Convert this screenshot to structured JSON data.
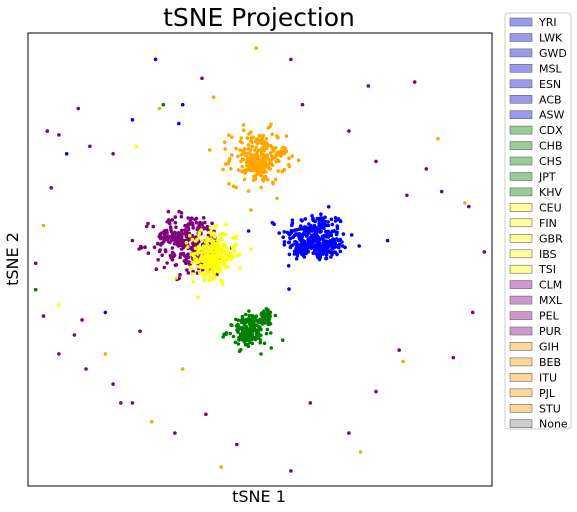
{
  "chart_data": {
    "type": "scatter",
    "title": "tSNE Projection",
    "xlabel": "tSNE 1",
    "ylabel": "tSNE 2",
    "xlim": [
      -60,
      60
    ],
    "ylim": [
      -60,
      60
    ],
    "grid": false,
    "ticks_visible": false,
    "legend_placement": "outside-right",
    "legend": [
      {
        "label": "YRI",
        "color": "#9999ee"
      },
      {
        "label": "LWK",
        "color": "#9999ee"
      },
      {
        "label": "GWD",
        "color": "#9999ee"
      },
      {
        "label": "MSL",
        "color": "#9999ee"
      },
      {
        "label": "ESN",
        "color": "#9999ee"
      },
      {
        "label": "ACB",
        "color": "#9999ee"
      },
      {
        "label": "ASW",
        "color": "#9999ee"
      },
      {
        "label": "CDX",
        "color": "#99cc99"
      },
      {
        "label": "CHB",
        "color": "#99cc99"
      },
      {
        "label": "CHS",
        "color": "#99cc99"
      },
      {
        "label": "JPT",
        "color": "#99cc99"
      },
      {
        "label": "KHV",
        "color": "#99cc99"
      },
      {
        "label": "CEU",
        "color": "#ffff99"
      },
      {
        "label": "FIN",
        "color": "#ffff99"
      },
      {
        "label": "GBR",
        "color": "#ffff99"
      },
      {
        "label": "IBS",
        "color": "#ffff99"
      },
      {
        "label": "TSI",
        "color": "#ffff99"
      },
      {
        "label": "CLM",
        "color": "#cc99cc"
      },
      {
        "label": "MXL",
        "color": "#cc99cc"
      },
      {
        "label": "PEL",
        "color": "#cc99cc"
      },
      {
        "label": "PUR",
        "color": "#cc99cc"
      },
      {
        "label": "GIH",
        "color": "#ffd699"
      },
      {
        "label": "BEB",
        "color": "#ffd699"
      },
      {
        "label": "ITU",
        "color": "#ffd699"
      },
      {
        "label": "PJL",
        "color": "#ffd699"
      },
      {
        "label": "STU",
        "color": "#ffd699"
      },
      {
        "label": "None",
        "color": "#cccccc"
      }
    ],
    "series": [
      {
        "color": "#0000ff",
        "clusters": [
          {
            "center": [
              14,
              6
            ],
            "spread": [
              7,
              5.5
            ],
            "n": 230
          },
          {
            "center": [
              17,
              3.5
            ],
            "spread": [
              3.5,
              2.5
            ],
            "n": 90
          },
          {
            "center": [
              10.5,
              2.5
            ],
            "spread": [
              1.2,
              1.2
            ],
            "n": 35
          },
          {
            "center": [
              12,
              7
            ],
            "spread": [
              1.3,
              1.3
            ],
            "n": 25
          }
        ],
        "outliers": [
          [
            -27,
            53
          ],
          [
            -33,
            37
          ],
          [
            -20,
            41
          ],
          [
            -50,
            28
          ],
          [
            -23,
            5
          ],
          [
            33,
            5
          ],
          [
            -40,
            -14
          ],
          [
            -21,
            36
          ]
        ]
      },
      {
        "color": "#008000",
        "clusters": [
          {
            "center": [
              -2.5,
              -19
            ],
            "spread": [
              5,
              3.5
            ],
            "n": 120
          },
          {
            "center": [
              -3,
              -20
            ],
            "spread": [
              1.8,
              1.8
            ],
            "n": 60
          },
          {
            "center": [
              1.5,
              -14.5
            ],
            "spread": [
              1.2,
              1.2
            ],
            "n": 35
          },
          {
            "center": [
              -2,
              -16
            ],
            "spread": [
              1.2,
              1.2
            ],
            "n": 20
          }
        ],
        "outliers": [
          [
            -25,
            41
          ],
          [
            -58,
            -8
          ]
        ]
      },
      {
        "color": "#ffa500",
        "clusters": [
          {
            "center": [
              -0.5,
              27
            ],
            "spread": [
              6,
              6
            ],
            "n": 200
          },
          {
            "center": [
              -0.5,
              25
            ],
            "spread": [
              2.5,
              2.5
            ],
            "n": 80
          },
          {
            "center": [
              5.5,
              28.5
            ],
            "spread": [
              1,
              0.8
            ],
            "n": 15
          }
        ],
        "outliers": [
          [
            -1,
            56
          ],
          [
            -12,
            43
          ],
          [
            -26,
            40
          ],
          [
            -13,
            29
          ],
          [
            46,
            32
          ],
          [
            53,
            15
          ],
          [
            -56,
            9
          ],
          [
            -40,
            -25
          ],
          [
            -20,
            -29
          ],
          [
            -28,
            -43
          ],
          [
            -10,
            -55
          ],
          [
            26,
            -51
          ],
          [
            37,
            -27
          ]
        ]
      },
      {
        "color": "#800080",
        "clusters": [
          {
            "center": [
              -18,
              4
            ],
            "spread": [
              8,
              7
            ],
            "n": 220
          },
          {
            "center": [
              -22,
              6
            ],
            "spread": [
              3,
              1.5
            ],
            "n": 60
          },
          {
            "center": [
              -17,
              3
            ],
            "spread": [
              1.5,
              1.2
            ],
            "n": 20
          }
        ],
        "outliers": [
          [
            8,
            53
          ],
          [
            -55,
            34
          ],
          [
            -52,
            33
          ],
          [
            -47,
            40
          ],
          [
            -15,
            48
          ],
          [
            -44,
            30
          ],
          [
            -38,
            28
          ],
          [
            -54,
            19
          ],
          [
            -58,
            -1
          ],
          [
            -56,
            -15
          ],
          [
            -52,
            -25
          ],
          [
            -46,
            -16
          ],
          [
            -48,
            -20
          ],
          [
            -38,
            -33
          ],
          [
            -33,
            -38
          ],
          [
            -22,
            -46
          ],
          [
            -14,
            -41
          ],
          [
            -6,
            -49
          ],
          [
            8,
            -56
          ],
          [
            23,
            -46
          ],
          [
            13,
            -38
          ],
          [
            30,
            -35
          ],
          [
            36,
            -24
          ],
          [
            50,
            -26
          ],
          [
            55,
            -14
          ],
          [
            58,
            2
          ],
          [
            54,
            14
          ],
          [
            47,
            18
          ],
          [
            38,
            17
          ],
          [
            30,
            26
          ],
          [
            23,
            34
          ],
          [
            11,
            41
          ],
          [
            28,
            46
          ],
          [
            40,
            47
          ],
          [
            43,
            24
          ],
          [
            -31,
            -19
          ],
          [
            -45,
            -29
          ],
          [
            -36,
            -38
          ]
        ]
      },
      {
        "color": "#ffff00",
        "clusters": [
          {
            "center": [
              -12,
              1.5
            ],
            "spread": [
              5,
              5
            ],
            "n": 220
          },
          {
            "center": [
              -13,
              -0.5
            ],
            "spread": [
              2.5,
              3
            ],
            "n": 80
          }
        ],
        "outliers": [
          [
            -32,
            30
          ],
          [
            -52,
            -12
          ],
          [
            -16,
            -10
          ]
        ]
      }
    ]
  }
}
